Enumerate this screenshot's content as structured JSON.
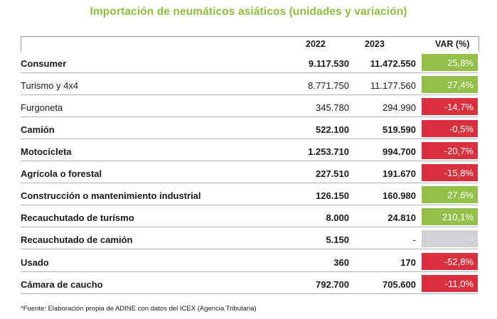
{
  "title": "Importación de neumáticos asiáticos (unidades y variación)",
  "headers": {
    "y2022": "2022",
    "y2023": "2023",
    "var": "VAR (%)"
  },
  "colors": {
    "title": "#8cbf3f",
    "positive": "#92c049",
    "negative": "#d9303d",
    "na": "#d0d2d6"
  },
  "rows": [
    {
      "label": "Consumer",
      "v2022": "9.117.530",
      "v2023": "11.472.550",
      "var": "25,8%"
    },
    {
      "label": "Turismo y 4x4",
      "v2022": "8.771.750",
      "v2023": "11.177.560",
      "var": "27,4%"
    },
    {
      "label": "Furgoneta",
      "v2022": "345.780",
      "v2023": "294.990",
      "var": "-14,7%"
    },
    {
      "label": "Camión",
      "v2022": "522.100",
      "v2023": "519.590",
      "var": "-0,5%"
    },
    {
      "label": "Motocicleta",
      "v2022": "1.253.710",
      "v2023": "994.700",
      "var": "-20,7%"
    },
    {
      "label": "Agrícola o forestal",
      "v2022": "227.510",
      "v2023": "191.670",
      "var": "-15,8%"
    },
    {
      "label": "Construcción o mantenimiento industrial",
      "v2022": "126.150",
      "v2023": "160.980",
      "var": "27,6%"
    },
    {
      "label": "Recauchutado de turísmo",
      "v2022": "8.000",
      "v2023": "24.810",
      "var": "210,1%"
    },
    {
      "label": "Recauchutado de camión",
      "v2022": "5.150",
      "v2023": "-",
      "var": "-"
    },
    {
      "label": "Usado",
      "v2022": "360",
      "v2023": "170",
      "var": "-52,8%"
    },
    {
      "label": "Cámara de caucho",
      "v2022": "792.700",
      "v2023": "705.600",
      "var": "-11,0%"
    }
  ],
  "footnote": "*Fuente: Elaboración propia de ADINE con datos del ICEX (Agencia Tributaria)"
}
